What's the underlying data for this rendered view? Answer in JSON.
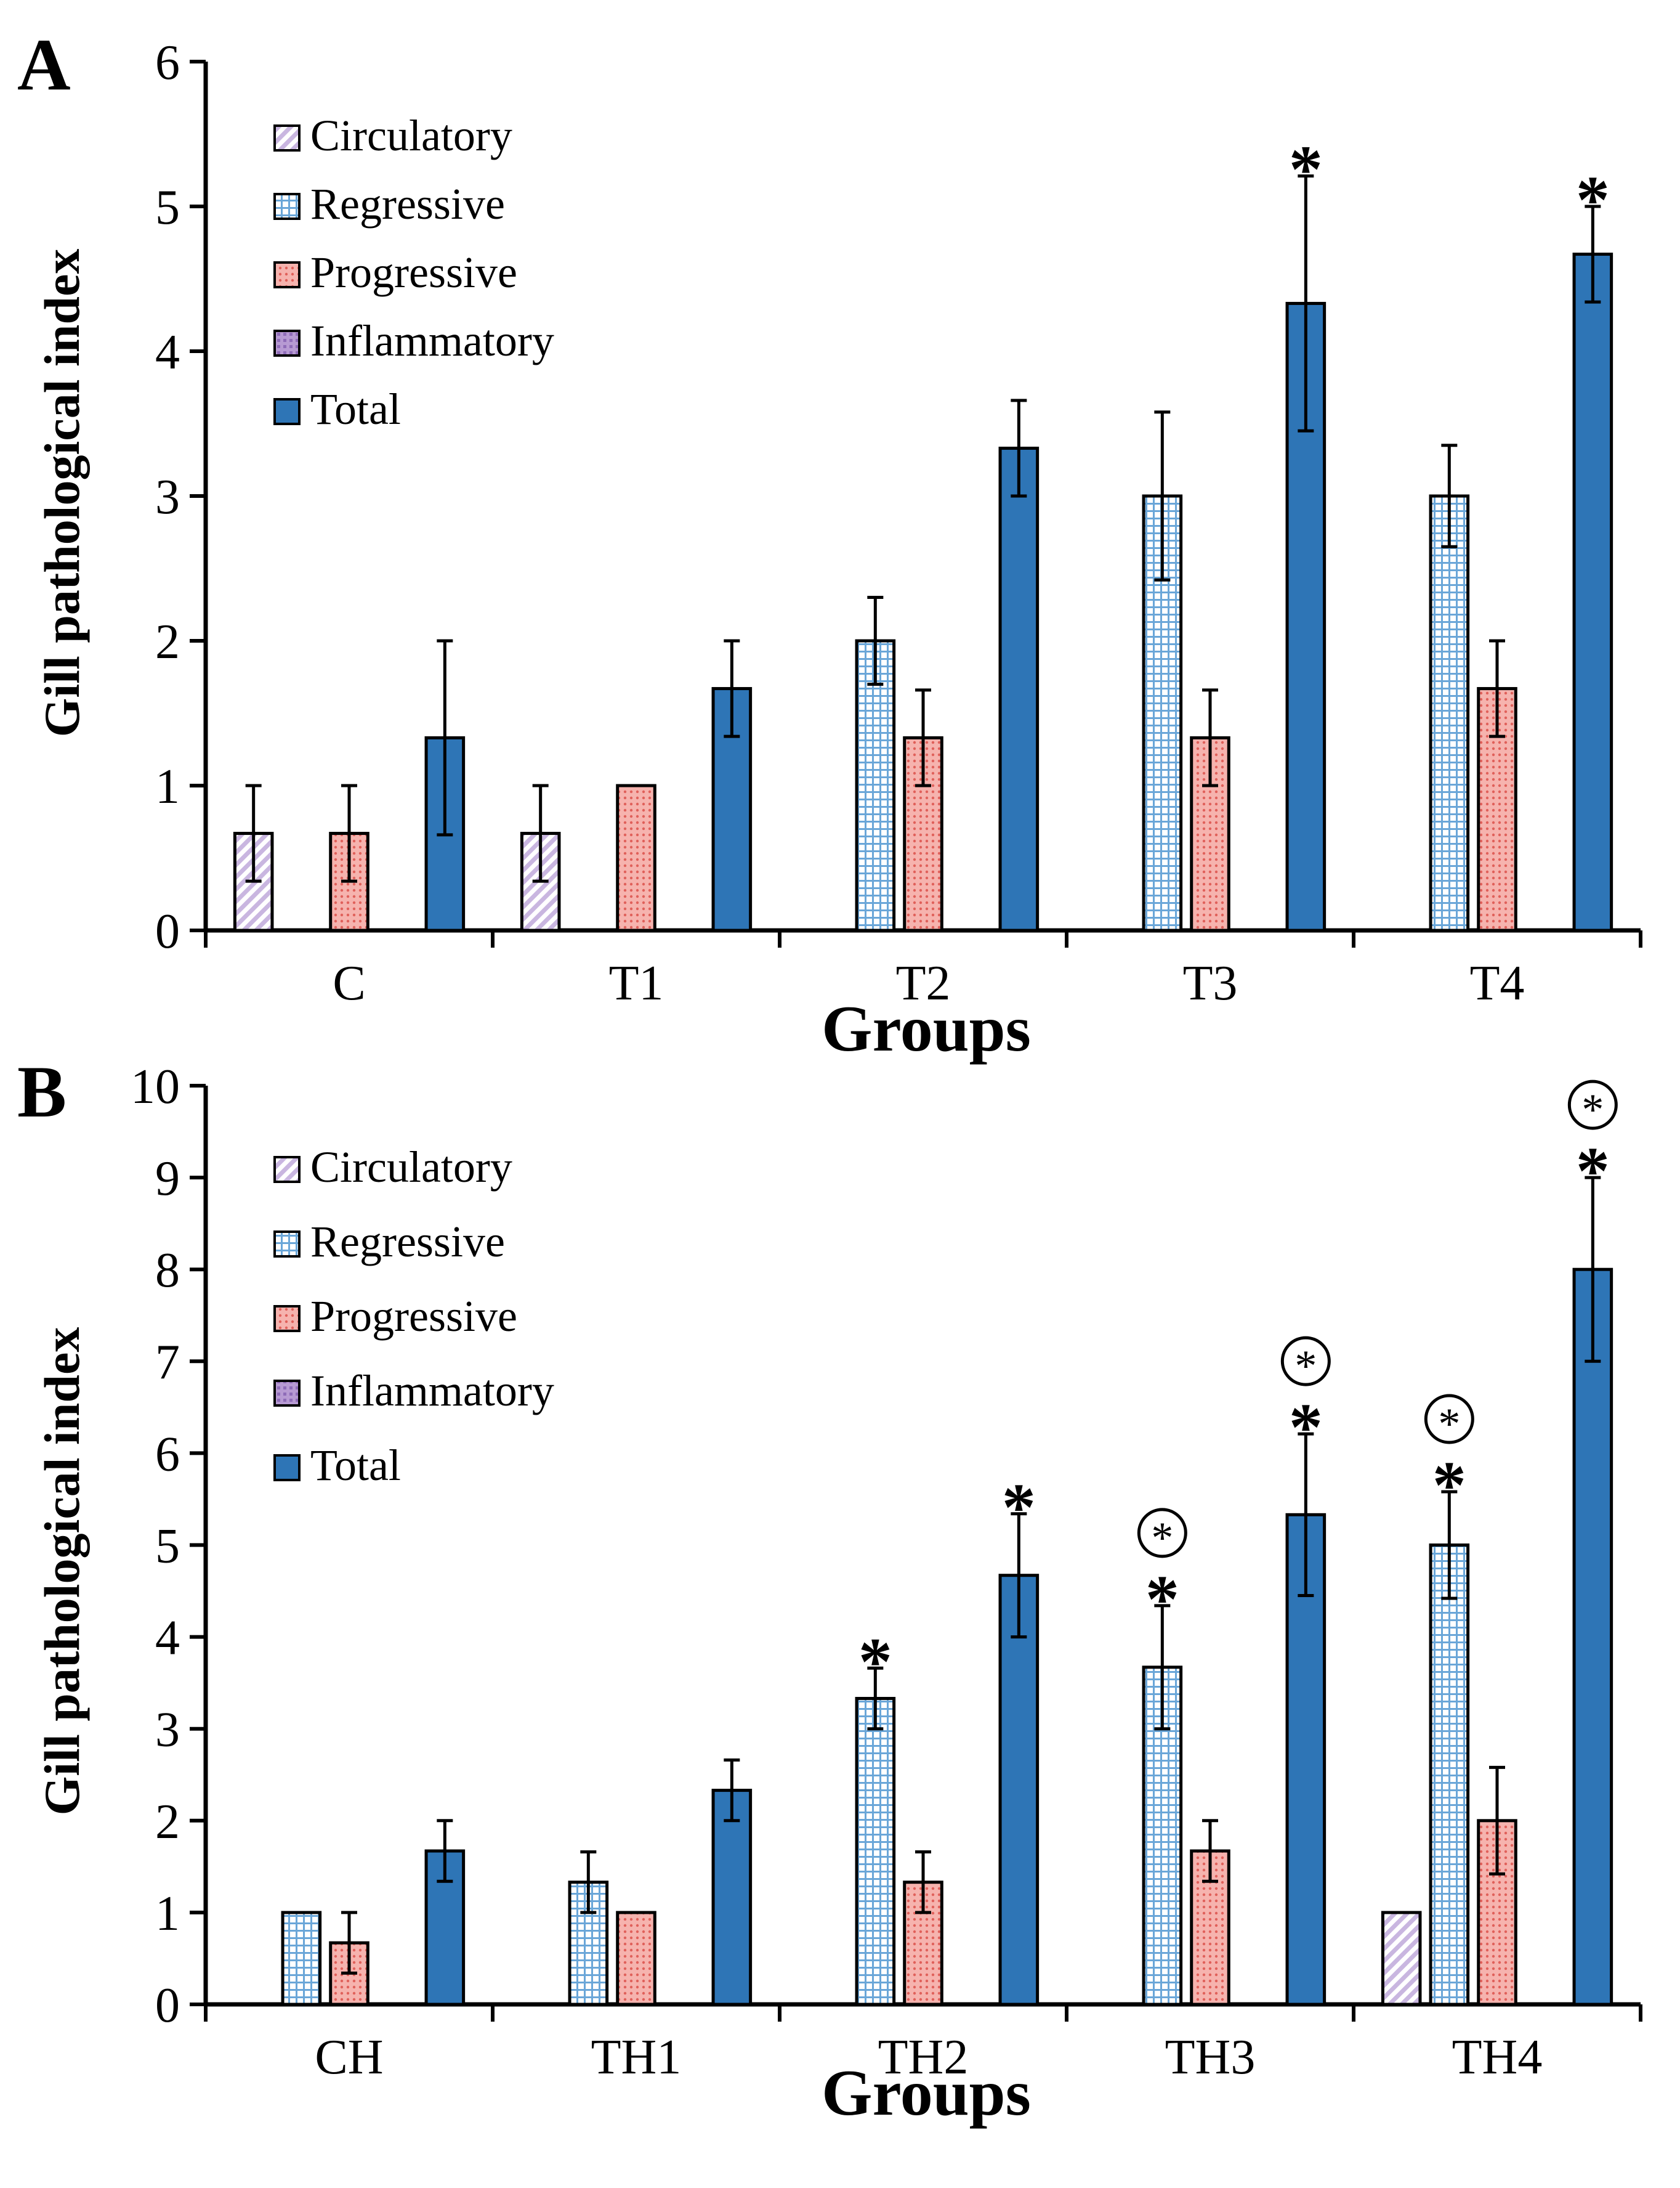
{
  "colors": {
    "circulatory": "#e2d6ee",
    "regressive": "#c9e0f4",
    "progressive": "#f4a7a2",
    "inflammatory": "#a98ac7",
    "total": "#2e75b6",
    "axis": "#000000"
  },
  "chart_data": [
    {
      "panel": "A",
      "type": "bar",
      "xlabel": "Groups",
      "ylabel": "Gill pathological index",
      "ylim": [
        0,
        6
      ],
      "yticks": [
        "0",
        "1",
        "2",
        "3",
        "4",
        "5",
        "6"
      ],
      "categories": [
        "C",
        "T1",
        "T2",
        "T3",
        "T4"
      ],
      "legend": [
        "Circulatory",
        "Regressive",
        "Progressive",
        "Inflammatory",
        "Total"
      ],
      "legend_position": "top-left",
      "series": [
        {
          "name": "Circulatory",
          "values": [
            0.67,
            0.67,
            null,
            null,
            null
          ],
          "errors": [
            0.33,
            0.33,
            null,
            null,
            null
          ]
        },
        {
          "name": "Regressive",
          "values": [
            null,
            null,
            2.0,
            3.0,
            3.0
          ],
          "errors": [
            null,
            null,
            0.3,
            0.58,
            0.35
          ]
        },
        {
          "name": "Progressive",
          "values": [
            0.67,
            1.0,
            1.33,
            1.33,
            1.67
          ],
          "errors": [
            0.33,
            0,
            0.33,
            0.33,
            0.33
          ]
        },
        {
          "name": "Inflammatory",
          "values": [
            null,
            null,
            null,
            null,
            null
          ],
          "errors": [
            null,
            null,
            null,
            null,
            null
          ]
        },
        {
          "name": "Total",
          "values": [
            1.33,
            1.67,
            3.33,
            4.33,
            4.67
          ],
          "errors": [
            0.67,
            0.33,
            0.33,
            0.88,
            0.33
          ]
        }
      ],
      "annotations": [
        {
          "category": "T3",
          "series": "Total",
          "marks": [
            "*"
          ]
        },
        {
          "category": "T4",
          "series": "Total",
          "marks": [
            "*"
          ]
        }
      ]
    },
    {
      "panel": "B",
      "type": "bar",
      "xlabel": "Groups",
      "ylabel": "Gill pathological index",
      "ylim": [
        0,
        10
      ],
      "yticks": [
        "0",
        "1",
        "2",
        "3",
        "4",
        "5",
        "6",
        "7",
        "8",
        "9",
        "10"
      ],
      "categories": [
        "CH",
        "TH1",
        "TH2",
        "TH3",
        "TH4"
      ],
      "legend": [
        "Circulatory",
        "Regressive",
        "Progressive",
        "Inflammatory",
        "Total"
      ],
      "legend_position": "top-left",
      "series": [
        {
          "name": "Circulatory",
          "values": [
            null,
            null,
            null,
            null,
            1.0
          ],
          "errors": [
            null,
            null,
            null,
            null,
            0
          ]
        },
        {
          "name": "Regressive",
          "values": [
            1.0,
            1.33,
            3.33,
            3.67,
            5.0
          ],
          "errors": [
            0,
            0.33,
            0.33,
            0.67,
            0.58
          ]
        },
        {
          "name": "Progressive",
          "values": [
            0.67,
            1.0,
            1.33,
            1.67,
            2.0
          ],
          "errors": [
            0.33,
            0,
            0.33,
            0.33,
            0.58
          ]
        },
        {
          "name": "Inflammatory",
          "values": [
            null,
            null,
            null,
            null,
            null
          ],
          "errors": [
            null,
            null,
            null,
            null,
            null
          ]
        },
        {
          "name": "Total",
          "values": [
            1.67,
            2.33,
            4.67,
            5.33,
            8.0
          ],
          "errors": [
            0.33,
            0.33,
            0.67,
            0.88,
            1.0
          ]
        }
      ],
      "annotations": [
        {
          "category": "TH2",
          "series": "Regressive",
          "marks": [
            "*"
          ]
        },
        {
          "category": "TH2",
          "series": "Total",
          "marks": [
            "*"
          ]
        },
        {
          "category": "TH3",
          "series": "Regressive",
          "marks": [
            "*",
            "(*)"
          ]
        },
        {
          "category": "TH3",
          "series": "Total",
          "marks": [
            "*",
            "(*)"
          ]
        },
        {
          "category": "TH4",
          "series": "Regressive",
          "marks": [
            "*",
            "(*)"
          ]
        },
        {
          "category": "TH4",
          "series": "Total",
          "marks": [
            "*",
            "(*)"
          ]
        }
      ]
    }
  ],
  "panel_labels": [
    "A",
    "B"
  ]
}
